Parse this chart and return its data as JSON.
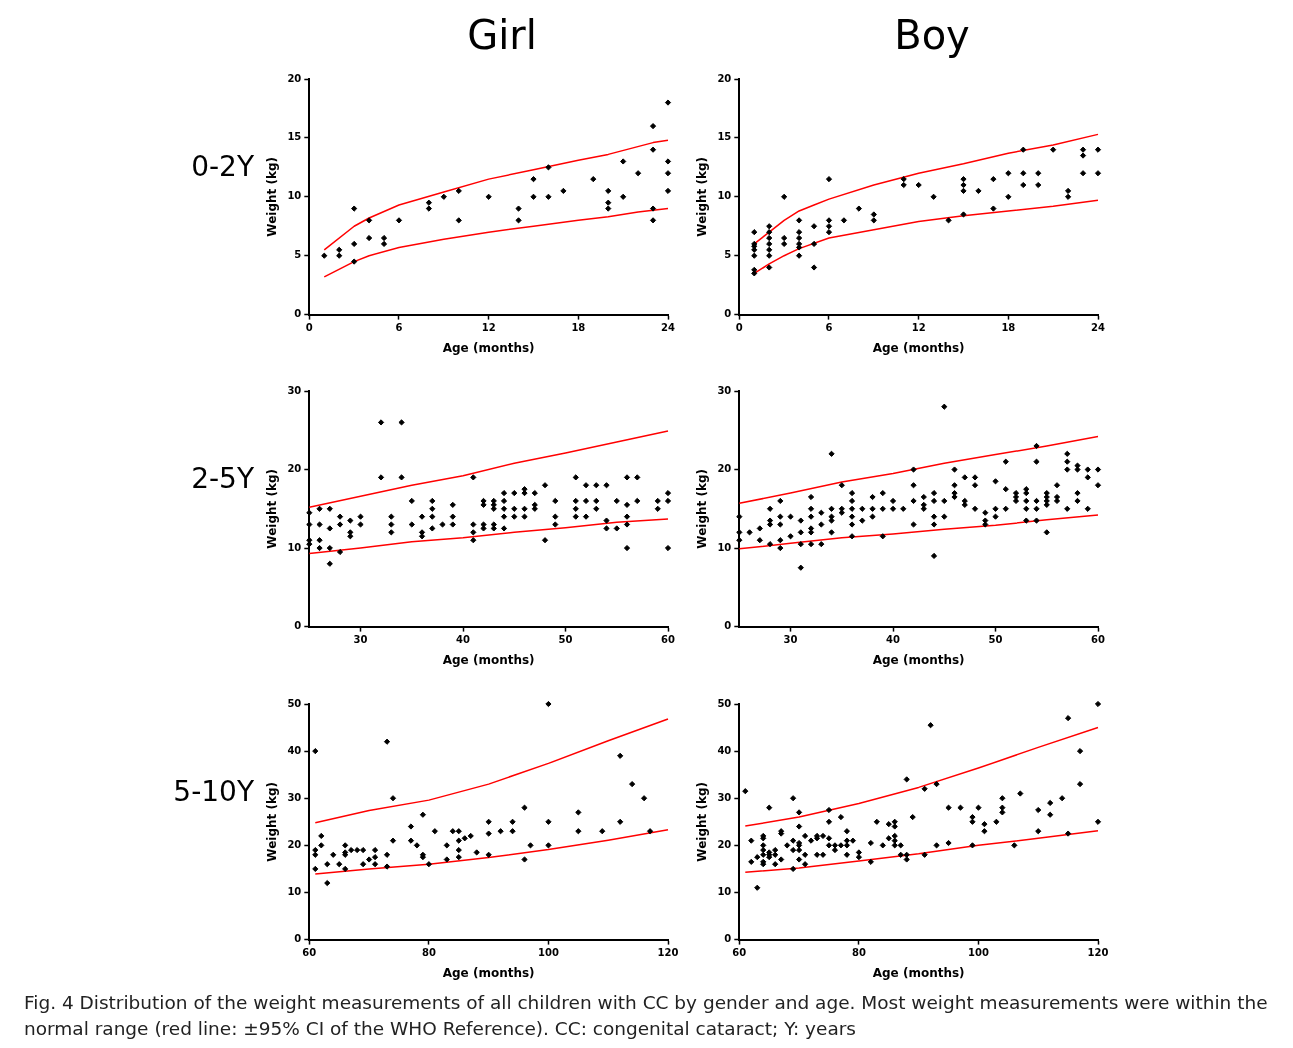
{
  "chart_data": [
    {
      "type": "scatter",
      "title": "Girl",
      "xlabel": "Age (months)",
      "ylabel": "Weight (kg)",
      "annotations": [
        "0-2Y"
      ],
      "xlim": [
        0,
        24
      ],
      "xticks": [
        0,
        6,
        12,
        18,
        24
      ],
      "ylim": [
        0,
        20
      ],
      "yticks": [
        0,
        5,
        10,
        15,
        20
      ],
      "grid": false,
      "legend": false,
      "marker": "diamond",
      "series": [
        {
          "type": "scatter",
          "color": "#000000",
          "x": [
            1,
            2,
            2,
            3,
            3,
            3,
            4,
            4,
            5,
            5,
            6,
            8,
            8,
            9,
            10,
            10,
            12,
            14,
            14,
            15,
            15,
            16,
            16,
            17,
            19,
            20,
            20,
            20,
            21,
            21,
            22,
            23,
            23,
            23,
            23,
            24,
            24,
            24,
            24
          ],
          "values": [
            5,
            5.5,
            5,
            9,
            6,
            4.5,
            8,
            6.5,
            6.5,
            6,
            8,
            9.5,
            9,
            10,
            10.5,
            8,
            10,
            9,
            8,
            11.5,
            10,
            12.5,
            10,
            10.5,
            11.5,
            10.5,
            9.5,
            9,
            13,
            10,
            12,
            16,
            14,
            9,
            8,
            18,
            13,
            12,
            10.5
          ]
        },
        {
          "type": "line",
          "marker": "none",
          "color": "#ff0000",
          "x": [
            1,
            3,
            4,
            6,
            9,
            12,
            15,
            18,
            20,
            23,
            24
          ],
          "values": [
            5.5,
            7.5,
            8.2,
            9.3,
            10.4,
            11.5,
            12.3,
            13.1,
            13.6,
            14.6,
            14.8
          ]
        },
        {
          "type": "line",
          "marker": "none",
          "color": "#ff0000",
          "x": [
            1,
            3,
            4,
            6,
            9,
            12,
            15,
            18,
            20,
            22,
            24
          ],
          "values": [
            3.2,
            4.5,
            5,
            5.7,
            6.4,
            7,
            7.5,
            8,
            8.3,
            8.7,
            9
          ]
        }
      ]
    },
    {
      "type": "scatter",
      "title": "Boy",
      "xlabel": "Age (months)",
      "ylabel": "Weight (kg)",
      "xlim": [
        0,
        24
      ],
      "xticks": [
        0,
        6,
        12,
        18,
        24
      ],
      "ylim": [
        0,
        20
      ],
      "yticks": [
        0,
        5,
        10,
        15,
        20
      ],
      "grid": false,
      "legend": false,
      "marker": "diamond",
      "series": [
        {
          "type": "scatter",
          "color": "#000000",
          "x": [
            1,
            1,
            1,
            1,
            1,
            1,
            1,
            2,
            2,
            2,
            2,
            2,
            2,
            2,
            3,
            3,
            3,
            4,
            4,
            4,
            4,
            4,
            4,
            5,
            5,
            5,
            6,
            6,
            6,
            6,
            7,
            8,
            9,
            9,
            11,
            11,
            12,
            13,
            14,
            15,
            15,
            15,
            15,
            16,
            17,
            17,
            18,
            18,
            19,
            19,
            19,
            20,
            20,
            21,
            22,
            22,
            23,
            23,
            23,
            24,
            24
          ],
          "values": [
            7,
            6,
            5.8,
            5.5,
            5,
            3.8,
            3.5,
            7.5,
            7,
            6.5,
            6,
            5.5,
            5,
            4,
            10,
            6.5,
            6,
            8,
            7,
            6.5,
            6,
            5.7,
            5,
            7.5,
            6,
            4,
            11.5,
            8,
            7.5,
            7,
            8,
            9,
            8.5,
            8,
            11.5,
            11,
            11,
            10,
            8,
            11.5,
            11,
            10.5,
            8.5,
            10.5,
            11.5,
            9,
            12,
            10,
            14,
            12,
            11,
            12,
            11,
            14,
            10.5,
            10,
            14,
            13.5,
            12,
            14,
            12
          ]
        },
        {
          "type": "line",
          "marker": "none",
          "color": "#ff0000",
          "x": [
            1,
            2,
            3,
            4,
            5,
            6,
            9,
            12,
            15,
            18,
            21,
            24
          ],
          "values": [
            6,
            7,
            8,
            8.8,
            9.3,
            9.8,
            11,
            12,
            12.8,
            13.7,
            14.4,
            15.3
          ]
        },
        {
          "type": "line",
          "marker": "none",
          "color": "#ff0000",
          "x": [
            1,
            2,
            3,
            4,
            6,
            9,
            12,
            15,
            18,
            21,
            24
          ],
          "values": [
            3.5,
            4.3,
            5,
            5.6,
            6.5,
            7.2,
            7.9,
            8.4,
            8.8,
            9.2,
            9.7
          ]
        }
      ]
    },
    {
      "type": "scatter",
      "xlabel": "Age (months)",
      "ylabel": "Weight (kg)",
      "annotations": [
        "2-5Y"
      ],
      "xlim": [
        25,
        60
      ],
      "xticks": [
        30,
        40,
        50,
        60
      ],
      "ylim": [
        0,
        30
      ],
      "yticks": [
        0,
        10,
        20,
        30
      ],
      "grid": false,
      "legend": false,
      "marker": "diamond",
      "series": [
        {
          "type": "scatter",
          "color": "#000000",
          "x": [
            25,
            25,
            25,
            25,
            26,
            26,
            26,
            26,
            27,
            27,
            27,
            27,
            28,
            28,
            28,
            29,
            29,
            29,
            30,
            30,
            32,
            32,
            33,
            33,
            33,
            34,
            34,
            35,
            35,
            36,
            36,
            36,
            37,
            37,
            37,
            37,
            38,
            39,
            39,
            39,
            41,
            41,
            41,
            41,
            42,
            42,
            42,
            42,
            43,
            43,
            43,
            43,
            43,
            44,
            44,
            44,
            44,
            44,
            45,
            45,
            45,
            46,
            46,
            46,
            46,
            47,
            47,
            47,
            48,
            48,
            49,
            49,
            49,
            51,
            51,
            51,
            51,
            52,
            52,
            52,
            53,
            53,
            53,
            54,
            54,
            54,
            55,
            55,
            56,
            56,
            56,
            56,
            56,
            57,
            57,
            59,
            59,
            60,
            60,
            60
          ],
          "values": [
            14.5,
            13,
            11,
            10.5,
            15,
            13,
            11,
            10,
            15,
            12.5,
            10,
            8,
            14,
            13,
            9.5,
            13.5,
            12,
            11.5,
            14,
            13,
            26,
            19,
            14,
            13,
            12,
            26,
            19,
            16,
            13,
            14,
            12,
            11.5,
            16,
            15,
            14,
            12.5,
            13,
            15.5,
            14,
            13,
            19,
            13,
            12,
            11,
            16,
            15.5,
            13,
            12.5,
            16,
            15.5,
            15,
            13,
            12.5,
            17,
            16,
            15,
            14,
            12.5,
            17,
            15,
            14,
            17.5,
            17,
            15,
            14,
            17,
            15.5,
            15,
            18,
            11,
            16,
            14,
            13,
            19,
            16,
            15,
            14,
            18,
            16,
            14,
            18,
            16,
            15,
            18,
            13.5,
            12.5,
            16,
            12.5,
            19,
            15.5,
            14,
            13,
            10,
            19,
            16,
            16,
            15,
            17,
            16,
            10
          ]
        },
        {
          "type": "line",
          "marker": "none",
          "color": "#ff0000",
          "x": [
            25,
            30,
            35,
            40,
            45,
            50,
            55,
            60
          ],
          "values": [
            15.2,
            16.6,
            18,
            19.2,
            20.8,
            22.1,
            23.5,
            24.9
          ]
        },
        {
          "type": "line",
          "marker": "none",
          "color": "#ff0000",
          "x": [
            25,
            30,
            35,
            40,
            45,
            50,
            55,
            60
          ],
          "values": [
            9.3,
            10,
            10.8,
            11.3,
            12,
            12.6,
            13.3,
            13.7
          ]
        }
      ]
    },
    {
      "type": "scatter",
      "xlabel": "Age (months)",
      "ylabel": "Weight (kg)",
      "xlim": [
        25,
        60
      ],
      "xticks": [
        30,
        40,
        50,
        60
      ],
      "ylim": [
        0,
        30
      ],
      "yticks": [
        0,
        10,
        20,
        30
      ],
      "grid": false,
      "legend": false,
      "marker": "diamond",
      "series": [
        {
          "type": "scatter",
          "color": "#000000",
          "x": [
            25,
            25,
            25,
            26,
            27,
            27,
            28,
            28,
            28,
            28,
            29,
            29,
            29,
            29,
            29,
            30,
            30,
            31,
            31,
            31,
            31,
            32,
            32,
            32,
            32,
            32,
            32,
            33,
            33,
            33,
            34,
            34,
            34,
            34,
            34,
            35,
            35,
            35,
            36,
            36,
            36,
            36,
            36,
            36,
            37,
            37,
            38,
            38,
            38,
            39,
            39,
            39,
            40,
            40,
            41,
            42,
            42,
            42,
            42,
            43,
            43,
            43,
            44,
            44,
            44,
            44,
            44,
            45,
            45,
            45,
            46,
            46,
            46,
            46,
            47,
            47,
            47,
            48,
            48,
            48,
            49,
            49,
            49,
            50,
            50,
            50,
            51,
            51,
            51,
            52,
            52,
            52,
            53,
            53,
            53,
            53,
            53,
            54,
            54,
            54,
            54,
            54,
            55,
            55,
            55,
            55,
            55,
            56,
            56,
            56,
            57,
            57,
            57,
            57,
            58,
            58,
            58,
            58,
            59,
            59,
            59,
            60,
            60
          ],
          "values": [
            14,
            12,
            11,
            12,
            12.5,
            11,
            15,
            13.5,
            13,
            10.5,
            16,
            14,
            13,
            11,
            10,
            14,
            11.5,
            13.5,
            12,
            10.5,
            7.5,
            16.5,
            15,
            14,
            12.5,
            12,
            10.5,
            14.5,
            13,
            10.5,
            22,
            15,
            14,
            13.5,
            12,
            18,
            15,
            14.5,
            17,
            16,
            15,
            14,
            13,
            11.5,
            15,
            13.5,
            16.5,
            15,
            14,
            17,
            15,
            11.5,
            16,
            15,
            15,
            20,
            18,
            16,
            13,
            16.5,
            15.5,
            15,
            17,
            16,
            14,
            13,
            9,
            28,
            16,
            14,
            20,
            18,
            17,
            16.5,
            19,
            16,
            15.5,
            19,
            18,
            15,
            14.5,
            13.5,
            13,
            18.5,
            15,
            14,
            21,
            17.5,
            15,
            17,
            16.5,
            16,
            17.5,
            17,
            16,
            15,
            13.5,
            23,
            21,
            16,
            15,
            13.5,
            17,
            16.5,
            16,
            15.5,
            12,
            18,
            16.5,
            16,
            22,
            21,
            20,
            15,
            20.5,
            20,
            17,
            16,
            20,
            19,
            15,
            20,
            18
          ]
        },
        {
          "type": "line",
          "marker": "none",
          "color": "#ff0000",
          "x": [
            25,
            30,
            35,
            40,
            45,
            50,
            55,
            60
          ],
          "values": [
            15.7,
            17,
            18.4,
            19.5,
            20.8,
            21.9,
            23,
            24.2
          ]
        },
        {
          "type": "line",
          "marker": "none",
          "color": "#ff0000",
          "x": [
            25,
            30,
            35,
            40,
            45,
            50,
            55,
            60
          ],
          "values": [
            9.9,
            10.6,
            11.3,
            11.8,
            12.4,
            12.9,
            13.6,
            14.2
          ]
        }
      ]
    },
    {
      "type": "scatter",
      "xlabel": "Age (months)",
      "ylabel": "Weight (kg)",
      "annotations": [
        "5-10Y"
      ],
      "xlim": [
        60,
        120
      ],
      "xticks": [
        60,
        80,
        100,
        120
      ],
      "ylim": [
        0,
        50
      ],
      "yticks": [
        0,
        10,
        20,
        30,
        40,
        50
      ],
      "grid": false,
      "legend": false,
      "marker": "diamond",
      "series": [
        {
          "type": "scatter",
          "color": "#000000",
          "x": [
            61,
            61,
            61,
            61,
            62,
            62,
            63,
            63,
            64,
            65,
            66,
            66,
            66,
            66,
            67,
            68,
            69,
            69,
            70,
            71,
            71,
            71,
            73,
            73,
            73,
            74,
            74,
            77,
            77,
            78,
            79,
            79,
            79,
            80,
            81,
            83,
            83,
            84,
            85,
            85,
            85,
            85,
            86,
            87,
            88,
            90,
            90,
            90,
            92,
            94,
            94,
            96,
            96,
            97,
            100,
            100,
            100,
            105,
            105,
            109,
            112,
            112,
            114,
            116,
            117
          ],
          "values": [
            40,
            19,
            18,
            15,
            22,
            20,
            16,
            12,
            18,
            16,
            20,
            18.5,
            18,
            15,
            19,
            19,
            19,
            16,
            17,
            19,
            17.5,
            16,
            42,
            18,
            15.5,
            30,
            21,
            24,
            21,
            20,
            26.5,
            18,
            17.5,
            16,
            23,
            20,
            17,
            23,
            23,
            21,
            19,
            17.5,
            21.5,
            22,
            18.5,
            25,
            22.5,
            18,
            23,
            25,
            23,
            28,
            17,
            20,
            50,
            25,
            20,
            27,
            23,
            23,
            39,
            25,
            33,
            30,
            23
          ]
        },
        {
          "type": "line",
          "marker": "none",
          "color": "#ff0000",
          "x": [
            61,
            70,
            80,
            90,
            100,
            110,
            120
          ],
          "values": [
            24.8,
            27.4,
            29.6,
            33,
            37.4,
            42.2,
            46.8
          ]
        },
        {
          "type": "line",
          "marker": "none",
          "color": "#ff0000",
          "x": [
            61,
            70,
            80,
            90,
            100,
            110,
            120
          ],
          "values": [
            13.9,
            15,
            16,
            17.4,
            19.1,
            21.1,
            23.3
          ]
        }
      ]
    },
    {
      "type": "scatter",
      "xlabel": "Age (months)",
      "ylabel": "Weight (kg)",
      "annotations": [
        "Fig. 4 Distribution of the weight measurements of all children with CC by gender and age. Most weight measurements were within the normal range (red line: ±95% CI of the WHO Reference). CC: congenital cataract; Y: years"
      ],
      "xlim": [
        60,
        120
      ],
      "xticks": [
        60,
        80,
        100,
        120
      ],
      "ylim": [
        0,
        50
      ],
      "yticks": [
        0,
        10,
        20,
        30,
        40,
        50
      ],
      "grid": false,
      "legend": false,
      "marker": "diamond",
      "series": [
        {
          "type": "scatter",
          "color": "#000000",
          "x": [
            61,
            62,
            62,
            63,
            63,
            64,
            64,
            64,
            64,
            64,
            64,
            64,
            65,
            65,
            65,
            65,
            66,
            66,
            66,
            67,
            67,
            67,
            68,
            69,
            69,
            69,
            69,
            70,
            70,
            70,
            70,
            70,
            70,
            71,
            71,
            71,
            72,
            73,
            73,
            73,
            74,
            74,
            75,
            75,
            75,
            75,
            76,
            76,
            77,
            77,
            78,
            78,
            78,
            78,
            79,
            80,
            80,
            82,
            82,
            83,
            84,
            85,
            85,
            86,
            86,
            86,
            86,
            86,
            87,
            87,
            88,
            88,
            88,
            89,
            91,
            91,
            92,
            93,
            93,
            95,
            95,
            97,
            99,
            99,
            99,
            100,
            101,
            101,
            103,
            104,
            104,
            104,
            106,
            107,
            110,
            110,
            112,
            112,
            114,
            115,
            115,
            117,
            117,
            120,
            120
          ],
          "values": [
            31.5,
            21,
            16.5,
            17.5,
            11,
            22,
            21.5,
            20,
            19,
            18,
            16.5,
            16,
            28,
            18.5,
            18,
            17.5,
            19,
            18,
            16,
            23,
            22.5,
            17,
            20,
            30,
            21,
            19,
            15,
            27,
            24,
            20.5,
            20,
            19,
            17,
            22,
            18,
            16,
            21,
            22,
            21.5,
            18,
            22,
            18,
            27.5,
            25,
            21.5,
            20,
            20,
            19,
            26,
            20,
            23,
            21,
            20,
            18,
            21,
            18.5,
            17.5,
            20.5,
            16.5,
            25,
            20,
            24.5,
            21.5,
            25,
            24,
            22,
            21,
            20,
            20,
            18,
            34,
            18,
            17,
            26,
            32,
            18,
            45.5,
            33,
            20,
            28,
            20.5,
            28,
            26,
            25,
            20,
            28,
            24.5,
            23,
            25,
            30,
            28,
            27,
            20,
            31,
            27.5,
            23,
            29,
            26.5,
            30,
            47,
            22.5,
            40,
            33,
            50,
            25
          ]
        },
        {
          "type": "line",
          "marker": "none",
          "color": "#ff0000",
          "x": [
            61,
            70,
            80,
            90,
            100,
            110,
            120
          ],
          "values": [
            24.1,
            26,
            28.9,
            32.3,
            36.4,
            40.8,
            45
          ]
        },
        {
          "type": "line",
          "marker": "none",
          "color": "#ff0000",
          "x": [
            61,
            70,
            80,
            90,
            100,
            110,
            120
          ],
          "values": [
            14.3,
            15.2,
            16.7,
            18.2,
            20,
            21.5,
            23.1
          ]
        }
      ]
    }
  ]
}
